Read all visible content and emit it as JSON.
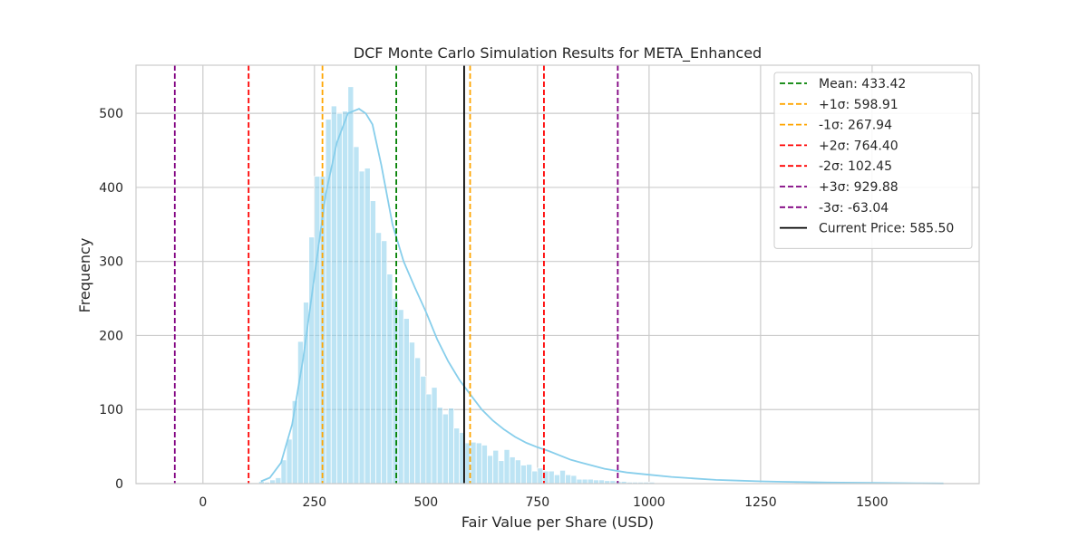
{
  "chart_data": {
    "type": "bar",
    "title": "DCF Monte Carlo Simulation Results for META_Enhanced",
    "xlabel": "Fair Value per Share (USD)",
    "ylabel": "Frequency",
    "xlim": [
      -150,
      1740
    ],
    "ylim": [
      0,
      565
    ],
    "x_ticks": [
      0,
      250,
      500,
      750,
      1000,
      1250,
      1500
    ],
    "y_ticks": [
      0,
      100,
      200,
      300,
      400,
      500
    ],
    "grid": true,
    "legend_position": "top-right",
    "colors": {
      "bars": "#87ceeb",
      "kde": "#87ceeb",
      "grid": "#cccccc",
      "mean": "#008000",
      "sigma1": "#ffa500",
      "sigma2": "#ff0000",
      "sigma3": "#800080",
      "current": "#000000"
    },
    "histogram": {
      "bin_start": 125,
      "bin_width": 12.5,
      "counts": [
        3,
        2,
        5,
        8,
        32,
        60,
        112,
        192,
        245,
        333,
        415,
        415,
        492,
        510,
        500,
        503,
        536,
        455,
        422,
        426,
        382,
        339,
        328,
        283,
        250,
        235,
        223,
        191,
        170,
        145,
        121,
        130,
        103,
        94,
        102,
        75,
        69,
        55,
        56,
        55,
        52,
        38,
        45,
        31,
        46,
        36,
        32,
        25,
        26,
        17,
        21,
        17,
        17,
        12,
        18,
        12,
        11,
        6,
        6,
        6,
        5,
        5,
        4,
        4,
        3,
        3,
        2,
        2,
        2,
        2,
        2,
        1,
        1,
        1,
        1,
        1,
        1,
        1,
        1,
        1,
        1,
        1,
        1,
        1,
        1,
        1,
        1,
        1,
        1,
        1,
        1,
        1,
        1,
        1,
        1,
        1,
        0,
        1,
        1,
        1,
        1,
        1,
        0,
        0,
        0,
        0,
        1,
        0,
        0,
        0,
        0,
        0,
        0,
        0,
        0,
        0,
        0,
        0,
        0,
        0,
        0,
        0
      ]
    },
    "kde": {
      "x": [
        130,
        150,
        175,
        200,
        225,
        250,
        275,
        300,
        325,
        350,
        365,
        380,
        400,
        425,
        450,
        475,
        500,
        525,
        550,
        575,
        600,
        625,
        650,
        675,
        700,
        725,
        750,
        775,
        800,
        825,
        850,
        875,
        900,
        950,
        1000,
        1050,
        1100,
        1150,
        1200,
        1250,
        1300,
        1400,
        1500,
        1600,
        1660
      ],
      "y": [
        3,
        8,
        28,
        80,
        170,
        280,
        390,
        460,
        500,
        506,
        500,
        485,
        430,
        350,
        300,
        265,
        232,
        195,
        165,
        140,
        120,
        100,
        85,
        73,
        63,
        55,
        49,
        44,
        38,
        32,
        28,
        24,
        20,
        15,
        12,
        9,
        7,
        5,
        4,
        3,
        2.5,
        1.5,
        1,
        0.5,
        0.3
      ]
    },
    "reference_lines": [
      {
        "label": "Mean: 433.42",
        "value": 433.42,
        "color": "#008000",
        "style": "dashed"
      },
      {
        "label": "+1σ: 598.91",
        "value": 598.91,
        "color": "#ffa500",
        "style": "dashed"
      },
      {
        "label": "-1σ: 267.94",
        "value": 267.94,
        "color": "#ffa500",
        "style": "dashed"
      },
      {
        "label": "+2σ: 764.40",
        "value": 764.4,
        "color": "#ff0000",
        "style": "dashed"
      },
      {
        "label": "-2σ: 102.45",
        "value": 102.45,
        "color": "#ff0000",
        "style": "dashed"
      },
      {
        "label": "+3σ: 929.88",
        "value": 929.88,
        "color": "#800080",
        "style": "dashed"
      },
      {
        "label": "-3σ: -63.04",
        "value": -63.04,
        "color": "#800080",
        "style": "dashed"
      },
      {
        "label": "Current Price: 585.50",
        "value": 585.5,
        "color": "#000000",
        "style": "solid"
      }
    ]
  }
}
